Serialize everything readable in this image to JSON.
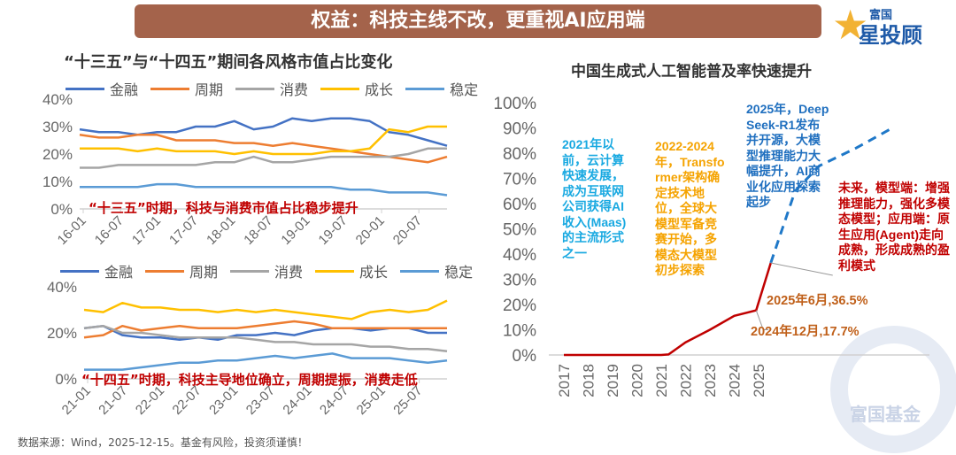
{
  "banner": {
    "title": "权益：科技主线不改，更重视AI应用端"
  },
  "logo": {
    "line1": "富国",
    "line2": "星投顾",
    "watermark": "富国基金"
  },
  "left_title": "“十三五”与“十四五”期间各风格市值占比变化",
  "legend": [
    {
      "name": "金融",
      "color": "#4472c4"
    },
    {
      "name": "周期",
      "color": "#ed7d31"
    },
    {
      "name": "消费",
      "color": "#a5a5a5"
    },
    {
      "name": "成长",
      "color": "#ffc000"
    },
    {
      "name": "稳定",
      "color": "#5b9bd5"
    }
  ],
  "notes": {
    "top": "“十三五”时期，科技与消费市值占比稳步提升",
    "bottom": "“十四五”时期，科技主导地位确立，周期提振，消费走低"
  },
  "right_title": "中国生成式人工智能普及率快速提升",
  "annotations": {
    "a2021": "2021年以前，云计算快速发展，成为互联网公司获得AI收入(Maas)的主流形式之一",
    "a2022": "2022-2024年，Transformer架构确定技术地位，全球大模型军备竞赛开始，多模态大模型初步探索",
    "a2025": "2025年，DeepSeek-R1发布并开源，大模型推理能力大幅提升，AI商业化应用探索起步",
    "future": "未来，模型端：增强推理能力，强化多模态模型；应用端：原生应用(Agent)走向成熟，形成成熟的盈利模式",
    "label_jun": "2025年6月,36.5%",
    "label_dec": "2024年12月,17.7%"
  },
  "source": "数据来源：Wind，2025-12-15。基金有风险，投资须谨慎！",
  "colors": {
    "accent_red": "#c00000",
    "banner": "#a4634b",
    "ai_line": "#c00000",
    "forecast": "#1f78c8"
  },
  "chart_data": [
    {
      "type": "line",
      "title": "“十三五”与“十四五”期间各风格市值占比变化",
      "x": [
        "16-01",
        "16-04",
        "16-07",
        "16-10",
        "17-01",
        "17-04",
        "17-07",
        "17-10",
        "18-01",
        "18-04",
        "18-07",
        "18-10",
        "19-01",
        "19-04",
        "19-07",
        "19-10",
        "20-01",
        "20-04",
        "20-07",
        "20-12"
      ],
      "xticks": [
        "16-01",
        "16-07",
        "17-01",
        "17-07",
        "18-01",
        "18-07",
        "19-01",
        "19-07",
        "20-01",
        "20-07"
      ],
      "yticks": [
        "0%",
        "10%",
        "20%",
        "30%",
        "40%"
      ],
      "ylim": [
        0,
        40
      ],
      "series": [
        {
          "name": "金融",
          "values": [
            29,
            28,
            28,
            27,
            28,
            28,
            30,
            30,
            32,
            29,
            30,
            33,
            32,
            33,
            33,
            32,
            28,
            27,
            25,
            23
          ]
        },
        {
          "name": "周期",
          "values": [
            27,
            26,
            26,
            27,
            27,
            25,
            25,
            25,
            24,
            24,
            23,
            24,
            23,
            22,
            21,
            20,
            19,
            18,
            17,
            19
          ]
        },
        {
          "name": "消费",
          "values": [
            15,
            15,
            16,
            16,
            16,
            16,
            16,
            17,
            17,
            19,
            17,
            17,
            18,
            19,
            19,
            19,
            19,
            20,
            22,
            22
          ]
        },
        {
          "name": "成长",
          "values": [
            22,
            22,
            22,
            21,
            22,
            21,
            21,
            21,
            20,
            21,
            20,
            20,
            20,
            21,
            21,
            22,
            29,
            28,
            30,
            30
          ]
        },
        {
          "name": "稳定",
          "values": [
            8,
            8,
            8,
            8,
            9,
            9,
            8,
            8,
            8,
            8,
            8,
            8,
            8,
            8,
            7,
            7,
            6,
            6,
            6,
            5
          ]
        }
      ]
    },
    {
      "type": "line",
      "x": [
        "21-01",
        "21-04",
        "21-07",
        "21-10",
        "22-01",
        "22-04",
        "22-07",
        "22-10",
        "23-01",
        "23-04",
        "23-07",
        "23-10",
        "24-01",
        "24-04",
        "24-07",
        "24-10",
        "25-01",
        "25-04",
        "25-07",
        "25-12"
      ],
      "xticks": [
        "21-01",
        "21-07",
        "22-01",
        "22-07",
        "23-01",
        "23-07",
        "24-01",
        "24-07",
        "25-01",
        "25-07"
      ],
      "yticks": [
        "0%",
        "20%",
        "40%"
      ],
      "ylim": [
        0,
        40
      ],
      "series": [
        {
          "name": "金融",
          "values": [
            22,
            23,
            19,
            18,
            18,
            17,
            18,
            17,
            19,
            19,
            20,
            19,
            21,
            22,
            22,
            21,
            22,
            22,
            20,
            20
          ]
        },
        {
          "name": "周期",
          "values": [
            18,
            19,
            23,
            21,
            22,
            23,
            22,
            22,
            22,
            23,
            24,
            25,
            24,
            22,
            22,
            22,
            22,
            22,
            22,
            22
          ]
        },
        {
          "name": "消费",
          "values": [
            22,
            23,
            20,
            20,
            19,
            18,
            18,
            18,
            18,
            17,
            16,
            16,
            15,
            15,
            15,
            14,
            14,
            13,
            13,
            12
          ]
        },
        {
          "name": "成长",
          "values": [
            30,
            29,
            33,
            31,
            31,
            30,
            30,
            29,
            30,
            29,
            30,
            29,
            28,
            27,
            26,
            29,
            30,
            29,
            30,
            34
          ]
        },
        {
          "name": "稳定",
          "values": [
            4,
            4,
            4,
            5,
            6,
            7,
            7,
            8,
            8,
            9,
            10,
            9,
            10,
            11,
            9,
            9,
            9,
            8,
            7,
            8
          ]
        }
      ]
    },
    {
      "type": "line",
      "title": "中国生成式人工智能普及率快速提升",
      "xticks": [
        "2017",
        "2018",
        "2019",
        "2020",
        "2021",
        "2022",
        "2023",
        "2024",
        "2025"
      ],
      "yticks": [
        "0%",
        "10%",
        "20%",
        "30%",
        "40%",
        "50%",
        "60%",
        "70%",
        "80%",
        "90%",
        "100%"
      ],
      "ylim": [
        0,
        100
      ],
      "series": [
        {
          "name": "actual",
          "x": [
            2017,
            2018,
            2019,
            2020,
            2021,
            2021.3,
            2022,
            2023,
            2024,
            2024.9,
            2025.5
          ],
          "values": [
            0,
            0,
            0,
            0,
            0,
            0.2,
            5,
            10,
            15.5,
            17.7,
            36.5
          ]
        },
        {
          "name": "forecast",
          "x": [
            2025.5,
            2026.5,
            2027.5,
            2029,
            2030.5
          ],
          "values": [
            36.5,
            65,
            75,
            82,
            90
          ]
        }
      ],
      "highlights": [
        {
          "x": 2024.9,
          "value": 17.7,
          "label": "2024年12月,17.7%"
        },
        {
          "x": 2025.5,
          "value": 36.5,
          "label": "2025年6月,36.5%"
        }
      ]
    }
  ]
}
